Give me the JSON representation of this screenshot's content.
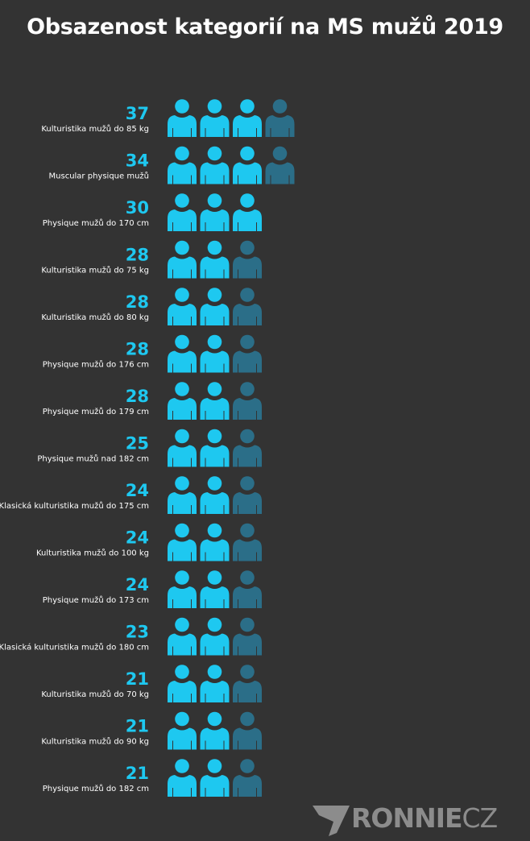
{
  "title": "Obsazenost kategorií na MS mužů 2019",
  "logo": {
    "main": "RONNIE",
    "suffix": "CZ"
  },
  "colors": {
    "background": "#333333",
    "icon_full": "#1ec8f0",
    "icon_empty": "#2b6e88",
    "value_text": "#1ec8f0",
    "label_text": "#ffffff"
  },
  "chart_data": {
    "type": "pictograph",
    "units_per_icon": 10,
    "icon": "person-icon",
    "categories": [
      "Kulturistika mužů do 85 kg",
      "Muscular physique mužů",
      "Physique mužů do 170 cm",
      "Kulturistika mužů do 75 kg",
      "Kulturistika mužů do 80 kg",
      "Physique mužů do 176 cm",
      "Physique mužů do 179 cm",
      "Physique mužů nad 182 cm",
      "Klasická kulturistika mužů do 175 cm",
      "Kulturistika mužů do 100 kg",
      "Physique mužů do 173 cm",
      "Klasická kulturistika mužů do 180 cm",
      "Kulturistika mužů do 70 kg",
      "Kulturistika mužů do 90 kg",
      "Physique mužů do 182 cm"
    ],
    "values": [
      37,
      34,
      30,
      28,
      28,
      28,
      28,
      25,
      24,
      24,
      24,
      23,
      21,
      21,
      21
    ]
  }
}
